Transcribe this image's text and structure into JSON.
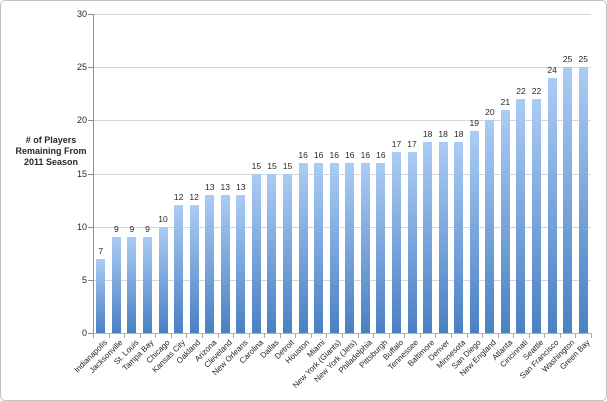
{
  "chart_data": {
    "type": "bar",
    "title": "",
    "xlabel": "",
    "ylabel": "# of Players Remaining From 2011 Season",
    "ylim": [
      0,
      30
    ],
    "yticks": [
      0,
      5,
      10,
      15,
      20,
      25,
      30
    ],
    "grid": "horizontal-only",
    "legend": "none",
    "value_labels_shown": true,
    "colors": {
      "bar_gradient_top": "#abccf4",
      "bar_gradient_bottom": "#4a80c3",
      "gridline": "#d6d6d6",
      "axis": "#8c8c8c",
      "text": "#262626",
      "frame_border": "#c2c2c2"
    },
    "categories": [
      "Indianapolis",
      "Jacksonville",
      "St. Louis",
      "Tampa Bay",
      "Chicago",
      "Kansas City",
      "Oakland",
      "Arizona",
      "Cleveland",
      "New Orleans",
      "Carolina",
      "Dallas",
      "Detroit",
      "Houston",
      "Miami",
      "New York (Giants)",
      "New York (Jets)",
      "Philadelphia",
      "Pittsburgh",
      "Buffalo",
      "Tennessee",
      "Baltimore",
      "Denver",
      "Minnesota",
      "San Diego",
      "New England",
      "Atlanta",
      "Cincinnati",
      "Seattle",
      "San Francisco",
      "Washington",
      "Green Bay"
    ],
    "values": [
      7,
      9,
      9,
      9,
      10,
      12,
      12,
      13,
      13,
      13,
      15,
      15,
      15,
      16,
      16,
      16,
      16,
      16,
      16,
      17,
      17,
      18,
      18,
      18,
      19,
      20,
      21,
      22,
      22,
      24,
      25,
      25
    ]
  }
}
